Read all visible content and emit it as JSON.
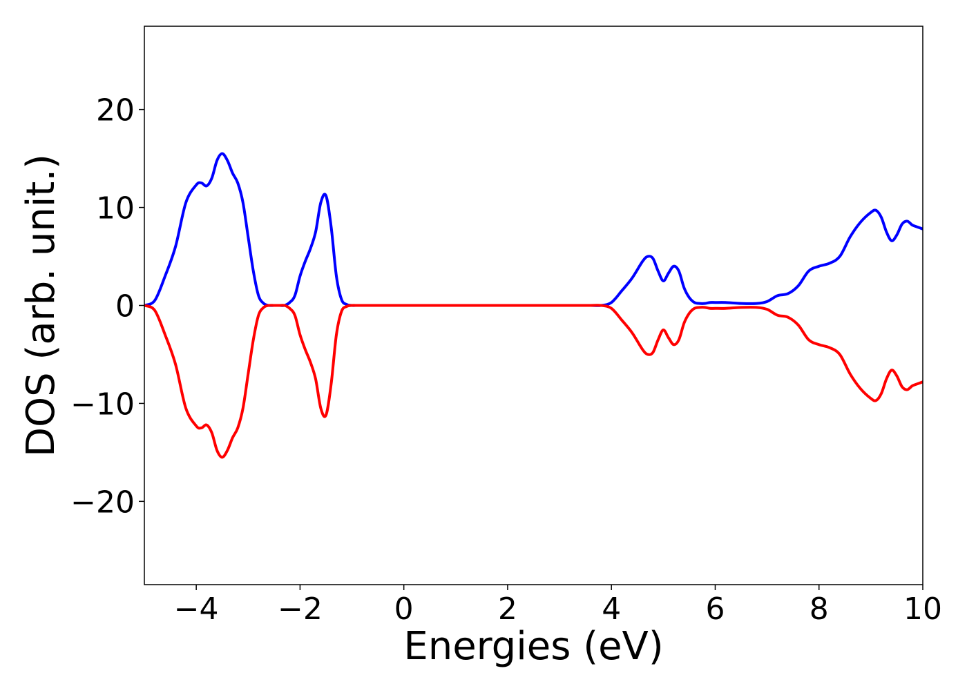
{
  "chart_data": {
    "type": "line",
    "title": "",
    "xlabel": "Energies (eV)",
    "ylabel": "DOS (arb. unit.)",
    "xlim": [
      -5,
      10
    ],
    "ylim": [
      -28.5,
      28.5
    ],
    "xticks": [
      -4,
      -2,
      0,
      2,
      4,
      6,
      8,
      10
    ],
    "xtick_labels": [
      "−4",
      "−2",
      "0",
      "2",
      "4",
      "6",
      "8",
      "10"
    ],
    "yticks": [
      20,
      10,
      0,
      -10,
      -20
    ],
    "ytick_labels": [
      "20",
      "10",
      "0",
      "−10",
      "−20"
    ],
    "grid": false,
    "legend": "none",
    "series": [
      {
        "color": "#0000ff",
        "x": [
          -5.0,
          -4.8,
          -4.6,
          -4.4,
          -4.2,
          -4.0,
          -3.9,
          -3.8,
          -3.7,
          -3.6,
          -3.5,
          -3.4,
          -3.3,
          -3.2,
          -3.1,
          -3.0,
          -2.9,
          -2.8,
          -2.7,
          -2.6,
          -2.5,
          -2.4,
          -2.3,
          -2.2,
          -2.1,
          -2.0,
          -1.9,
          -1.8,
          -1.7,
          -1.6,
          -1.5,
          -1.4,
          -1.3,
          -1.2,
          -1.1,
          -1.0,
          -0.9,
          -0.8,
          -0.7,
          -0.6,
          -0.5,
          0.0,
          1.0,
          2.0,
          3.0,
          3.6,
          3.8,
          4.0,
          4.2,
          4.4,
          4.6,
          4.7,
          4.8,
          4.9,
          5.0,
          5.1,
          5.2,
          5.3,
          5.4,
          5.5,
          5.6,
          5.7,
          5.8,
          5.9,
          6.0,
          6.2,
          6.5,
          6.8,
          7.0,
          7.2,
          7.4,
          7.6,
          7.8,
          8.0,
          8.2,
          8.4,
          8.6,
          8.8,
          9.0,
          9.1,
          9.2,
          9.3,
          9.4,
          9.5,
          9.6,
          9.7,
          9.8,
          9.9,
          10.0
        ],
        "values": [
          0.0,
          0.5,
          3.0,
          6.0,
          10.5,
          12.3,
          12.5,
          12.2,
          13.0,
          14.8,
          15.5,
          14.8,
          13.5,
          12.5,
          10.5,
          7.0,
          3.5,
          1.0,
          0.2,
          0.0,
          0.0,
          0.0,
          0.0,
          0.3,
          1.0,
          3.0,
          4.5,
          5.8,
          7.5,
          10.5,
          11.2,
          8.0,
          3.0,
          0.6,
          0.1,
          0.0,
          0.0,
          0.0,
          0.0,
          0.0,
          0.0,
          0.0,
          0.0,
          0.0,
          0.0,
          0.0,
          0.0,
          0.3,
          1.5,
          2.8,
          4.5,
          5.0,
          4.8,
          3.5,
          2.5,
          3.3,
          4.0,
          3.5,
          1.8,
          0.8,
          0.3,
          0.2,
          0.2,
          0.3,
          0.3,
          0.3,
          0.2,
          0.2,
          0.4,
          1.0,
          1.2,
          2.0,
          3.5,
          4.0,
          4.3,
          5.0,
          7.0,
          8.5,
          9.5,
          9.7,
          9.0,
          7.5,
          6.6,
          7.2,
          8.3,
          8.6,
          8.2,
          8.0,
          7.8
        ]
      },
      {
        "color": "#ff0000",
        "x": [
          -5.0,
          -4.8,
          -4.6,
          -4.4,
          -4.2,
          -4.0,
          -3.9,
          -3.8,
          -3.7,
          -3.6,
          -3.5,
          -3.4,
          -3.3,
          -3.2,
          -3.1,
          -3.0,
          -2.9,
          -2.8,
          -2.7,
          -2.6,
          -2.5,
          -2.4,
          -2.3,
          -2.2,
          -2.1,
          -2.0,
          -1.9,
          -1.8,
          -1.7,
          -1.6,
          -1.5,
          -1.4,
          -1.3,
          -1.2,
          -1.1,
          -1.0,
          -0.9,
          -0.8,
          -0.7,
          -0.6,
          -0.5,
          0.0,
          1.0,
          2.0,
          3.0,
          3.6,
          3.8,
          4.0,
          4.2,
          4.4,
          4.6,
          4.7,
          4.8,
          4.9,
          5.0,
          5.1,
          5.2,
          5.3,
          5.4,
          5.5,
          5.6,
          5.7,
          5.8,
          5.9,
          6.0,
          6.2,
          6.5,
          6.8,
          7.0,
          7.2,
          7.4,
          7.6,
          7.8,
          8.0,
          8.2,
          8.4,
          8.6,
          8.8,
          9.0,
          9.1,
          9.2,
          9.3,
          9.4,
          9.5,
          9.6,
          9.7,
          9.8,
          9.9,
          10.0
        ],
        "values": [
          0.0,
          -0.5,
          -3.0,
          -6.0,
          -10.5,
          -12.3,
          -12.5,
          -12.2,
          -13.0,
          -14.8,
          -15.5,
          -14.8,
          -13.5,
          -12.5,
          -10.5,
          -7.0,
          -3.5,
          -1.0,
          -0.2,
          0.0,
          0.0,
          0.0,
          0.0,
          -0.3,
          -1.0,
          -3.0,
          -4.5,
          -5.8,
          -7.5,
          -10.5,
          -11.2,
          -8.0,
          -3.0,
          -0.6,
          -0.1,
          0.0,
          0.0,
          0.0,
          0.0,
          0.0,
          0.0,
          0.0,
          0.0,
          0.0,
          0.0,
          0.0,
          0.0,
          -0.3,
          -1.5,
          -2.8,
          -4.5,
          -5.0,
          -4.8,
          -3.5,
          -2.5,
          -3.3,
          -4.0,
          -3.5,
          -1.8,
          -0.8,
          -0.3,
          -0.2,
          -0.2,
          -0.3,
          -0.3,
          -0.3,
          -0.2,
          -0.2,
          -0.4,
          -1.0,
          -1.2,
          -2.0,
          -3.5,
          -4.0,
          -4.3,
          -5.0,
          -7.0,
          -8.5,
          -9.5,
          -9.7,
          -9.0,
          -7.5,
          -6.6,
          -7.2,
          -8.3,
          -8.6,
          -8.2,
          -8.0,
          -7.8
        ]
      }
    ]
  }
}
